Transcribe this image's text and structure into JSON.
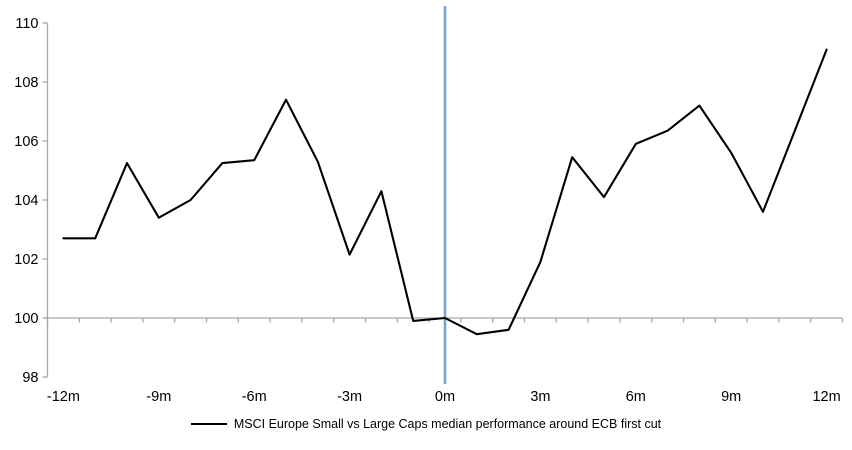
{
  "chart_data": {
    "type": "line",
    "title": "",
    "xlabel": "",
    "ylabel": "",
    "x_months": [
      -12,
      -11,
      -10,
      -9,
      -8,
      -7,
      -6,
      -5,
      -4,
      -3,
      -2,
      -1,
      0,
      1,
      2,
      3,
      4,
      5,
      6,
      7,
      8,
      9,
      10,
      11,
      12
    ],
    "series": [
      {
        "name": "MSCI Europe Small vs Large Caps median performance around ECB first cut",
        "values": [
          102.7,
          102.7,
          105.25,
          103.4,
          104.0,
          105.25,
          105.35,
          107.4,
          105.3,
          102.15,
          104.3,
          99.9,
          100.0,
          99.45,
          99.6,
          101.9,
          105.45,
          104.1,
          105.9,
          106.35,
          107.2,
          105.6,
          103.6,
          106.35,
          109.1
        ]
      }
    ],
    "ylim": [
      98,
      110
    ],
    "ytick_labels": [
      "98",
      "100",
      "102",
      "104",
      "106",
      "108",
      "110"
    ],
    "yticks": [
      98,
      100,
      102,
      104,
      106,
      108,
      110
    ],
    "xtick_positions": [
      -12,
      -9,
      -6,
      -3,
      0,
      3,
      6,
      9,
      12
    ],
    "xtick_labels": [
      "-12m",
      "-9m",
      "-6m",
      "-3m",
      "0m",
      "3m",
      "6m",
      "9m",
      "12m"
    ],
    "x_axis_cross_value": 100,
    "event_line_at_month": 0,
    "grid": "off",
    "legend_position": "bottom",
    "colors": {
      "series_line": "#000000",
      "event_line": "#79A3D1",
      "axis_line": "#A6A6A6",
      "tick_label": "#000000"
    }
  }
}
